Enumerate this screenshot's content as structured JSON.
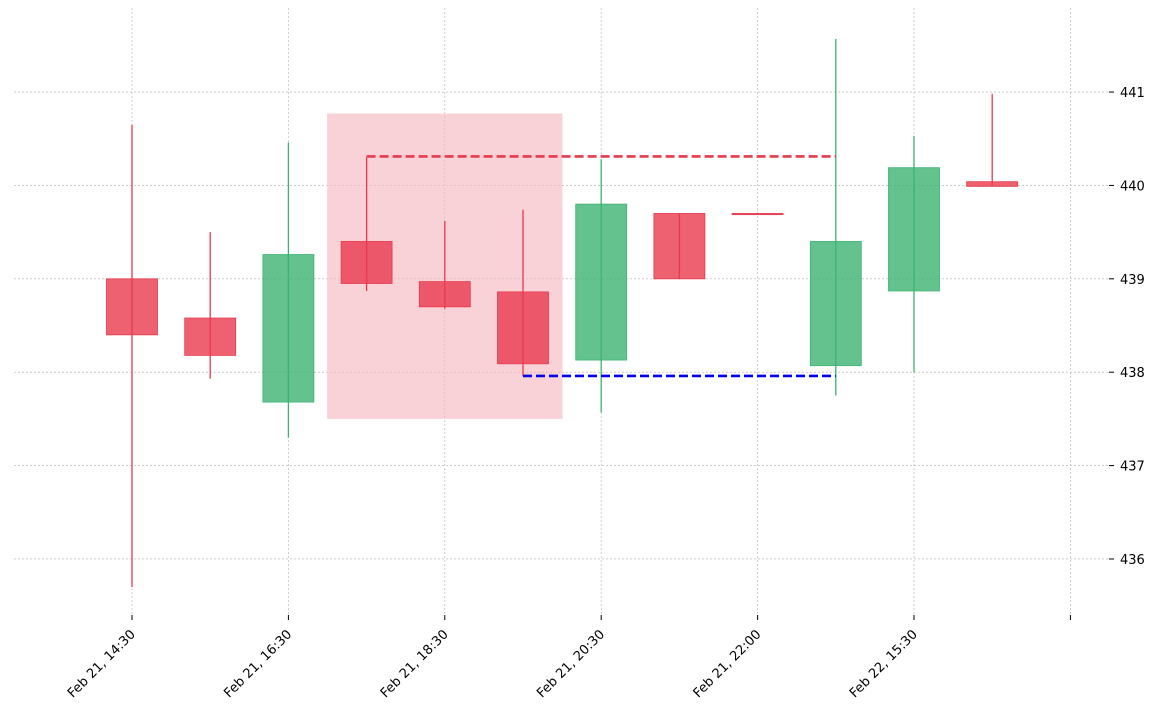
{
  "chart_data": {
    "type": "candlestick",
    "title": "",
    "xlabel": "",
    "ylabel": "",
    "ylim": [
      435.4,
      441.9
    ],
    "y_ticks": [
      436,
      437,
      438,
      439,
      440,
      441
    ],
    "x_tick_labels": [
      "Feb 21, 14:30",
      "Feb 21, 16:30",
      "Feb 21, 18:30",
      "Feb 21, 20:30",
      "Feb 21, 22:00",
      "Feb 22, 15:30",
      ""
    ],
    "grid": true,
    "colors": {
      "up": "#3cb371",
      "down": "#e8394d",
      "highlight_zone": "#f5b7bf",
      "resistance_line": "#e8394d",
      "support_line": "#0000ee",
      "grid": "#b0b0b0"
    },
    "candles": [
      {
        "open": 439.0,
        "high": 440.65,
        "low": 435.7,
        "close": 438.4
      },
      {
        "open": 438.58,
        "high": 439.5,
        "low": 437.93,
        "close": 438.18
      },
      {
        "open": 437.68,
        "high": 440.46,
        "low": 437.3,
        "close": 439.26
      },
      {
        "open": 439.4,
        "high": 440.3,
        "low": 438.87,
        "close": 438.95
      },
      {
        "open": 438.97,
        "high": 439.62,
        "low": 438.68,
        "close": 438.7
      },
      {
        "open": 438.86,
        "high": 439.74,
        "low": 437.96,
        "close": 438.09
      },
      {
        "open": 438.13,
        "high": 440.28,
        "low": 437.57,
        "close": 439.8
      },
      {
        "open": 439.7,
        "high": 439.7,
        "low": 439.0,
        "close": 439.0
      },
      {
        "open": 439.7,
        "high": 439.7,
        "low": 439.7,
        "close": 439.69
      },
      {
        "open": 438.07,
        "high": 441.57,
        "low": 437.75,
        "close": 439.4
      },
      {
        "open": 438.87,
        "high": 440.53,
        "low": 438.0,
        "close": 440.19
      },
      {
        "open": 440.04,
        "high": 440.98,
        "low": 439.99,
        "close": 439.99
      }
    ],
    "highlight_zone": {
      "from_index": 3,
      "to_index": 5,
      "y_low": 437.5,
      "y_high": 440.77
    },
    "levels": [
      {
        "kind": "resistance",
        "value": 440.31,
        "from_index": 3,
        "to_index": 9
      },
      {
        "kind": "support",
        "value": 437.96,
        "from_index": 5,
        "to_index": 9
      }
    ]
  }
}
